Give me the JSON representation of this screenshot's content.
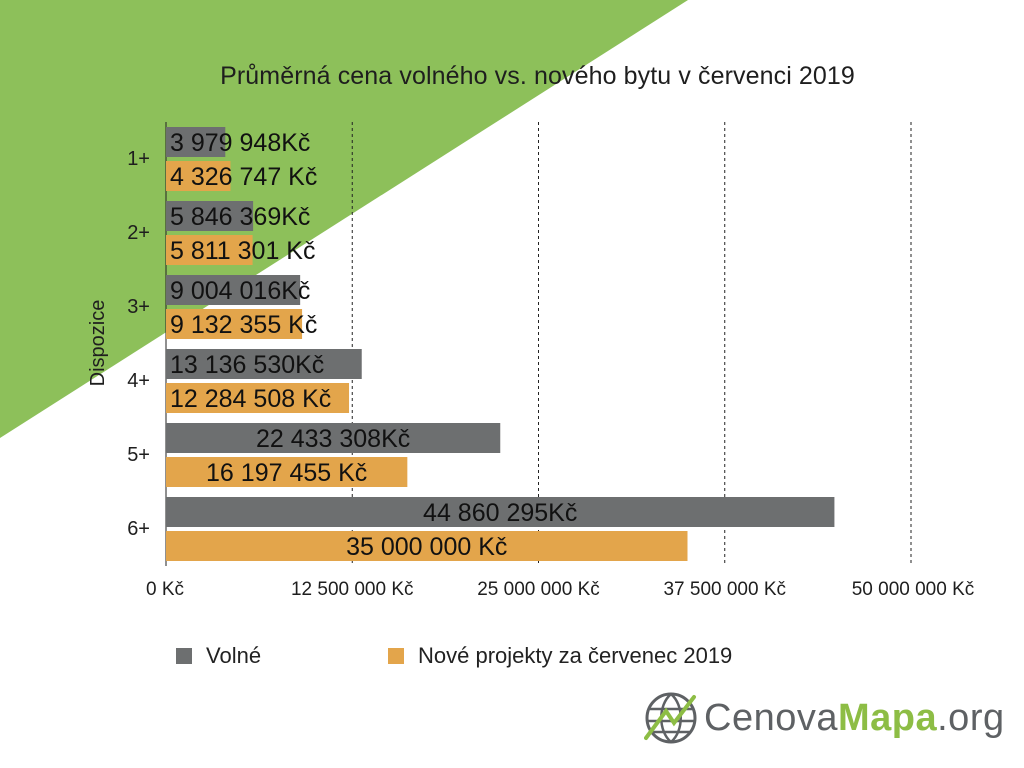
{
  "colors": {
    "background_accent": "#8dc05a",
    "volne": "#6d6f70",
    "nove": "#e3a54b",
    "text": "#1e1e1e",
    "grid": "#222222",
    "logo_gray": "#5e6164",
    "logo_green": "#8dbd45"
  },
  "chart_data": {
    "type": "bar",
    "orientation": "horizontal",
    "title": "Průměrná cena volného vs. nového bytu v červenci 2019",
    "ylabel": "Dispozice",
    "xlabel": "",
    "categories": [
      "1+",
      "2+",
      "3+",
      "4+",
      "5+",
      "6+"
    ],
    "xlim": [
      0,
      50000000
    ],
    "xticks": [
      0,
      12500000,
      25000000,
      37500000,
      50000000
    ],
    "xtick_labels": [
      "0 Kč",
      "12 500 000 Kč",
      "25 000 000 Kč",
      "37 500 000 Kč",
      "50 000 000 Kč"
    ],
    "grid": "vertical dashed",
    "legend_position": "bottom",
    "series": [
      {
        "name": "Volné",
        "values": [
          3979948,
          5846369,
          9004016,
          13136530,
          22433308,
          44860295
        ],
        "labels": [
          "3 979 948Kč",
          "5 846 369Kč",
          "9 004 016Kč",
          "13 136 530Kč",
          "22 433 308Kč",
          "44 860 295Kč"
        ]
      },
      {
        "name": "Nové projekty za červenec 2019",
        "values": [
          4326747,
          5811301,
          9132355,
          12284508,
          16197455,
          35000000
        ],
        "labels": [
          "4 326 747 Kč",
          "5 811 301 Kč",
          "9 132 355 Kč",
          "12 284 508 Kč",
          "16 197 455 Kč",
          "35 000 000 Kč"
        ]
      }
    ]
  },
  "legend": {
    "volne": "Volné",
    "nove": "Nové projekty za červenec 2019"
  },
  "logo": {
    "part1": "Cenova",
    "part2": "Mapa",
    "part3": ".org",
    "icon": "globe-grid-icon"
  }
}
